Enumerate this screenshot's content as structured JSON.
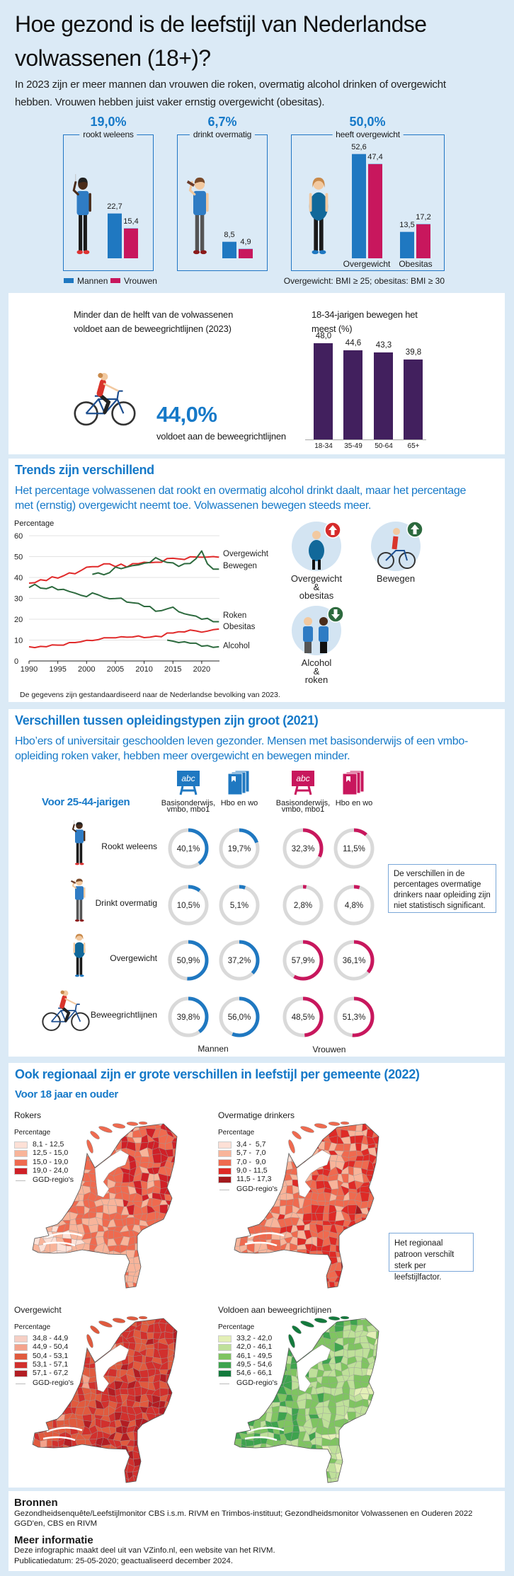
{
  "colors": {
    "background": "#dbeaf6",
    "accent_blue": "#1679c8",
    "men": "#1f78c1",
    "women": "#c8175d",
    "age_bars": "#42205e",
    "trend_red": "#e02a2a",
    "trend_green": "#2d6a3e",
    "ring_track": "#d9d9d9"
  },
  "header": {
    "title": "Hoe gezond is de leefstijl van Nederlandse volwassenen (18+)?",
    "intro": "In 2023 zijn er meer mannen dan vrouwen die roken, overmatig alcohol drinken of overgewicht hebben. Vrouwen hebben juist vaker ernstig overgewicht (obesitas)."
  },
  "summary": {
    "cards": [
      {
        "value": "19,0%"
      },
      {
        "value": "6,7%"
      },
      {
        "value": "50,0%",
        "label": "heeft overgewicht"
      }
    ],
    "note": "Overgewicht: BMI ≥ 25; obesitas: BMI ≥ 30"
  },
  "movement": {
    "intro": "Minder dan de helft van de volwassenen voldoet aan de beweegrichtlijnen (2023)",
    "value": "44,0%",
    "value_label": "voldoet aan de beweegrichtlijnen"
  },
  "trends": {
    "title": "Trends zijn verschillend",
    "subtitle": "Het percentage volwassenen dat rookt en overmatig alcohol drinkt daalt, maar het percentage met (ernstig) overgewicht neemt toe. Volwassenen bewegen steeds meer.",
    "icons": [
      {
        "label": "Overgewicht\n&\nobesitas",
        "trend": "up",
        "color": "#d62b2b"
      },
      {
        "label": "Bewegen",
        "trend": "up",
        "color": "#2d6a3e"
      },
      {
        "label": "Alcohol\n&\nroken",
        "trend": "down",
        "color": "#2d6a3e"
      }
    ],
    "footnote": "De gegevens zijn gestandaardiseerd naar de Nederlandse bevolking van 2023."
  },
  "education": {
    "title": "Verschillen tussen opleidingstypen zijn groot (2021)",
    "subtitle": "Hbo’ers of universitair geschoolden leven gezonder. Mensen met basisonderwijs of een vmbo-opleiding roken vaker, hebben meer overgewicht en bewegen minder.",
    "age_group": "Voor 25-44-jarigen",
    "icon_text": "abc",
    "note": "De verschillen in de percentages overmatige drinkers naar opleiding zijn niet statistisch significant."
  },
  "regional": {
    "title": "Ook regionaal zijn er grote verschillen in leefstijl per gemeente (2022)",
    "subtitle": "Voor 18 jaar en ouder",
    "note": "Het regionaal patroon verschilt sterk per leefstijlfactor.",
    "maps": [
      {
        "title": "Rokers",
        "legend_title": "Percentage",
        "classes": [
          "8,1 - 12,5",
          "12,5 - 15,0",
          "15,0 - 19,0",
          "19,0 - 24,0"
        ],
        "colors": [
          "#fde0d6",
          "#f8b49a",
          "#ef6a4f",
          "#cf2027"
        ],
        "boundary_label": "GGD-regio's"
      },
      {
        "title": "Overmatige drinkers",
        "legend_title": "Percentage",
        "classes": [
          "3,4 -  5,7",
          "5,7 -  7,0",
          "7,0 -  9,0",
          "9,0 - 11,5",
          "11,5 - 17,3"
        ],
        "colors": [
          "#fde0d6",
          "#f8b49a",
          "#ef6a4f",
          "#de2a26",
          "#a31a1e"
        ],
        "boundary_label": "GGD-regio's"
      },
      {
        "title": "Overgewicht",
        "legend_title": "Percentage",
        "classes": [
          "34,8 - 44,9",
          "44,9 - 50,4",
          "50,4 - 53,1",
          "53,1 - 57,1",
          "57,1 - 67,2"
        ],
        "colors": [
          "#f6cfc4",
          "#f4a38c",
          "#e05a3e",
          "#d1302d",
          "#b21d23"
        ],
        "boundary_label": "GGD-regio's"
      },
      {
        "title": "Voldoen aan beweegrichtijnen",
        "legend_title": "Percentage",
        "classes": [
          "33,2 - 42,0",
          "42,0 - 46,1",
          "46,1 - 49,5",
          "49,5 - 54,6",
          "54,6 - 66,1"
        ],
        "colors": [
          "#e3efb6",
          "#bfe09a",
          "#7fc461",
          "#3ea34e",
          "#137a3d"
        ],
        "boundary_label": "GGD-regio's"
      }
    ]
  },
  "sources": {
    "title": "Bronnen",
    "lines": [
      "Gezondheidsenquête/Leefstijlmonitor CBS i.s.m. RIVM en Trimbos-instituut; Gezondheidsmonitor Volwassenen en Ouderen 2022",
      "GGD'en, CBS en RIVM"
    ],
    "more_title": "Meer informatie",
    "more_lines": [
      "Deze infographic maakt deel uit van VZinfo.nl, een website van het RIVM.",
      "Publicatiedatum: 25-05-2020; geactualiseerd december 2024."
    ]
  },
  "chart_data": [
    {
      "type": "bar",
      "title": "",
      "categories": [
        "rookt weleens",
        "drinkt overmatig",
        "Overgewicht",
        "Obesitas"
      ],
      "series": [
        {
          "name": "Mannen",
          "values": [
            22.7,
            8.5,
            52.6,
            13.5
          ]
        },
        {
          "name": "Vrouwen",
          "values": [
            15.4,
            4.9,
            47.4,
            17.2
          ]
        }
      ],
      "unit": "%"
    },
    {
      "type": "bar",
      "title": "18-34-jarigen bewegen het meest (%)",
      "categories": [
        "18-34",
        "35-49",
        "50-64",
        "65+"
      ],
      "values": [
        48.0,
        44.6,
        43.3,
        39.8
      ],
      "ylim": [
        0,
        50
      ]
    },
    {
      "type": "line",
      "ylabel": "Percentage",
      "ylim": [
        0,
        60
      ],
      "yticks": [
        0,
        10,
        20,
        30,
        40,
        50,
        60
      ],
      "xticks": [
        1990,
        1995,
        2000,
        2005,
        2010,
        2015,
        2020
      ],
      "grid": true,
      "x": [
        1990,
        1991,
        1992,
        1993,
        1994,
        1995,
        1996,
        1997,
        1998,
        1999,
        2000,
        2001,
        2002,
        2003,
        2004,
        2005,
        2006,
        2007,
        2008,
        2009,
        2010,
        2011,
        2012,
        2013,
        2014,
        2015,
        2016,
        2017,
        2018,
        2019,
        2020,
        2021,
        2022,
        2023
      ],
      "series": [
        {
          "name": "Overgewicht",
          "color": "#e02a2a",
          "values": [
            37.3,
            37.5,
            38.9,
            38.5,
            40.3,
            39.7,
            40.8,
            42.2,
            41.8,
            43.3,
            44.9,
            45.2,
            45.2,
            46.5,
            46.5,
            45.2,
            46.4,
            45.0,
            46.6,
            46.6,
            47.3,
            47.1,
            47.3,
            47.3,
            49.1,
            49.2,
            48.9,
            48.6,
            49.9,
            49.8,
            49.7,
            49.8,
            50.0,
            49.7
          ]
        },
        {
          "name": "Bewegen",
          "color": "#2d6a3e",
          "values": [
            null,
            null,
            null,
            null,
            null,
            null,
            null,
            null,
            null,
            null,
            null,
            41.5,
            42.2,
            41.3,
            42.3,
            45.0,
            44.2,
            45.0,
            45.7,
            46.0,
            46.8,
            47.2,
            49.5,
            48.1,
            47.2,
            47.0,
            45.3,
            46.6,
            46.7,
            49.0,
            52.7,
            46.5,
            44.0,
            44.0
          ]
        },
        {
          "name": "Roken",
          "color": "#2d6a3e",
          "values": [
            35.2,
            36.7,
            34.9,
            34.6,
            35.6,
            34.1,
            34.3,
            33.3,
            32.5,
            31.5,
            30.8,
            32.6,
            31.7,
            30.5,
            29.8,
            29.9,
            30.1,
            28.2,
            27.9,
            27.6,
            26.1,
            26.1,
            23.8,
            24.1,
            25.0,
            25.8,
            23.6,
            22.6,
            22.0,
            21.5,
            20.0,
            20.4,
            18.8,
            18.8
          ]
        },
        {
          "name": "Obesitas",
          "color": "#e02a2a",
          "values": [
            6.8,
            6.4,
            7.0,
            6.8,
            7.7,
            7.6,
            7.6,
            8.8,
            8.8,
            9.2,
            9.9,
            9.8,
            10.2,
            11.1,
            11.1,
            11.1,
            11.6,
            11.4,
            11.5,
            12.0,
            11.2,
            11.4,
            11.9,
            11.6,
            13.4,
            13.4,
            14.0,
            13.9,
            14.8,
            14.4,
            13.8,
            14.3,
            15.0,
            15.3
          ]
        },
        {
          "name": "Alcohol",
          "color": "#2d6a3e",
          "values": [
            null,
            null,
            null,
            null,
            null,
            null,
            null,
            null,
            null,
            null,
            null,
            null,
            null,
            null,
            null,
            null,
            null,
            null,
            null,
            null,
            null,
            null,
            null,
            null,
            10.0,
            9.5,
            8.8,
            9.2,
            8.5,
            8.5,
            7.1,
            7.4,
            6.5,
            6.8
          ]
        }
      ]
    },
    {
      "type": "donut",
      "rows": [
        "Rookt weleens",
        "Drinkt overmatig",
        "Overgewicht",
        "Beweegrichtlijnen"
      ],
      "groups": [
        "Mannen",
        "Vrouwen"
      ],
      "education_levels": [
        "Basisonderwijs,\nvmbo, mbo1",
        "Hbo en wo"
      ],
      "series": [
        {
          "group": "Mannen",
          "education": "Basisonderwijs, vmbo, mbo1",
          "values": [
            40.1,
            10.5,
            50.9,
            39.8
          ]
        },
        {
          "group": "Mannen",
          "education": "Hbo en wo",
          "values": [
            19.7,
            5.1,
            37.2,
            56.0
          ]
        },
        {
          "group": "Vrouwen",
          "education": "Basisonderwijs, vmbo, mbo1",
          "values": [
            32.3,
            2.8,
            57.9,
            48.5
          ]
        },
        {
          "group": "Vrouwen",
          "education": "Hbo en wo",
          "values": [
            11.5,
            4.8,
            36.1,
            51.3
          ]
        }
      ],
      "unit": "%"
    }
  ]
}
